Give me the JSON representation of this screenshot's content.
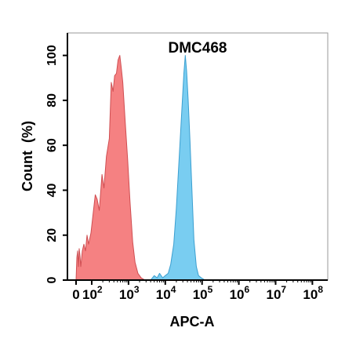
{
  "chart_data": {
    "type": "area",
    "title": "DMC468",
    "xlabel": "APC-A",
    "ylabel": "Count  (%)",
    "x_scale": "biexponential",
    "xlim": [
      0,
      100000000
    ],
    "ylim": [
      0,
      110
    ],
    "grid": false,
    "y_ticks": [
      {
        "value": 0,
        "label": "0"
      },
      {
        "value": 20,
        "label": "20"
      },
      {
        "value": 40,
        "label": "40"
      },
      {
        "value": 60,
        "label": "60"
      },
      {
        "value": 80,
        "label": "80"
      },
      {
        "value": 100,
        "label": "100"
      }
    ],
    "x_ticks": [
      {
        "value": 0,
        "base": "0",
        "exp": ""
      },
      {
        "value": 100,
        "base": "10",
        "exp": "2"
      },
      {
        "value": 1000,
        "base": "10",
        "exp": "3"
      },
      {
        "value": 10000,
        "base": "10",
        "exp": "4"
      },
      {
        "value": 100000,
        "base": "10",
        "exp": "5"
      },
      {
        "value": 1000000,
        "base": "10",
        "exp": "6"
      },
      {
        "value": 10000000,
        "base": "10",
        "exp": "7"
      },
      {
        "value": 100000000,
        "base": "10",
        "exp": "8"
      }
    ],
    "series": [
      {
        "color": "#f47677",
        "edge": "#cf4e52",
        "points": [
          [
            0,
            0
          ],
          [
            5,
            10
          ],
          [
            10,
            13
          ],
          [
            15,
            6
          ],
          [
            20,
            14
          ],
          [
            25,
            11
          ],
          [
            30,
            6
          ],
          [
            40,
            13
          ],
          [
            50,
            16
          ],
          [
            60,
            13
          ],
          [
            70,
            20
          ],
          [
            80,
            16
          ],
          [
            95,
            21
          ],
          [
            110,
            30
          ],
          [
            125,
            38
          ],
          [
            140,
            36
          ],
          [
            160,
            31
          ],
          [
            190,
            47
          ],
          [
            215,
            41
          ],
          [
            250,
            55
          ],
          [
            300,
            63
          ],
          [
            340,
            88
          ],
          [
            380,
            84
          ],
          [
            420,
            91
          ],
          [
            470,
            92
          ],
          [
            520,
            98
          ],
          [
            580,
            100
          ],
          [
            640,
            94
          ],
          [
            700,
            88
          ],
          [
            800,
            72
          ],
          [
            950,
            53
          ],
          [
            1100,
            35
          ],
          [
            1300,
            17
          ],
          [
            1500,
            8
          ],
          [
            1800,
            3
          ],
          [
            2200,
            1
          ],
          [
            2800,
            0
          ]
        ]
      },
      {
        "color": "#6ec9f0",
        "edge": "#3b9fd0",
        "points": [
          [
            4000,
            0
          ],
          [
            5000,
            2
          ],
          [
            6000,
            1
          ],
          [
            7000,
            3
          ],
          [
            8500,
            1
          ],
          [
            10000,
            2
          ],
          [
            12000,
            3
          ],
          [
            14000,
            7
          ],
          [
            17000,
            16
          ],
          [
            20000,
            32
          ],
          [
            24000,
            55
          ],
          [
            28000,
            75
          ],
          [
            32000,
            92
          ],
          [
            35000,
            100
          ],
          [
            38000,
            93
          ],
          [
            42000,
            80
          ],
          [
            47000,
            62
          ],
          [
            53000,
            40
          ],
          [
            60000,
            18
          ],
          [
            70000,
            6
          ],
          [
            80000,
            2
          ],
          [
            95000,
            1
          ],
          [
            120000,
            0
          ]
        ]
      }
    ]
  }
}
